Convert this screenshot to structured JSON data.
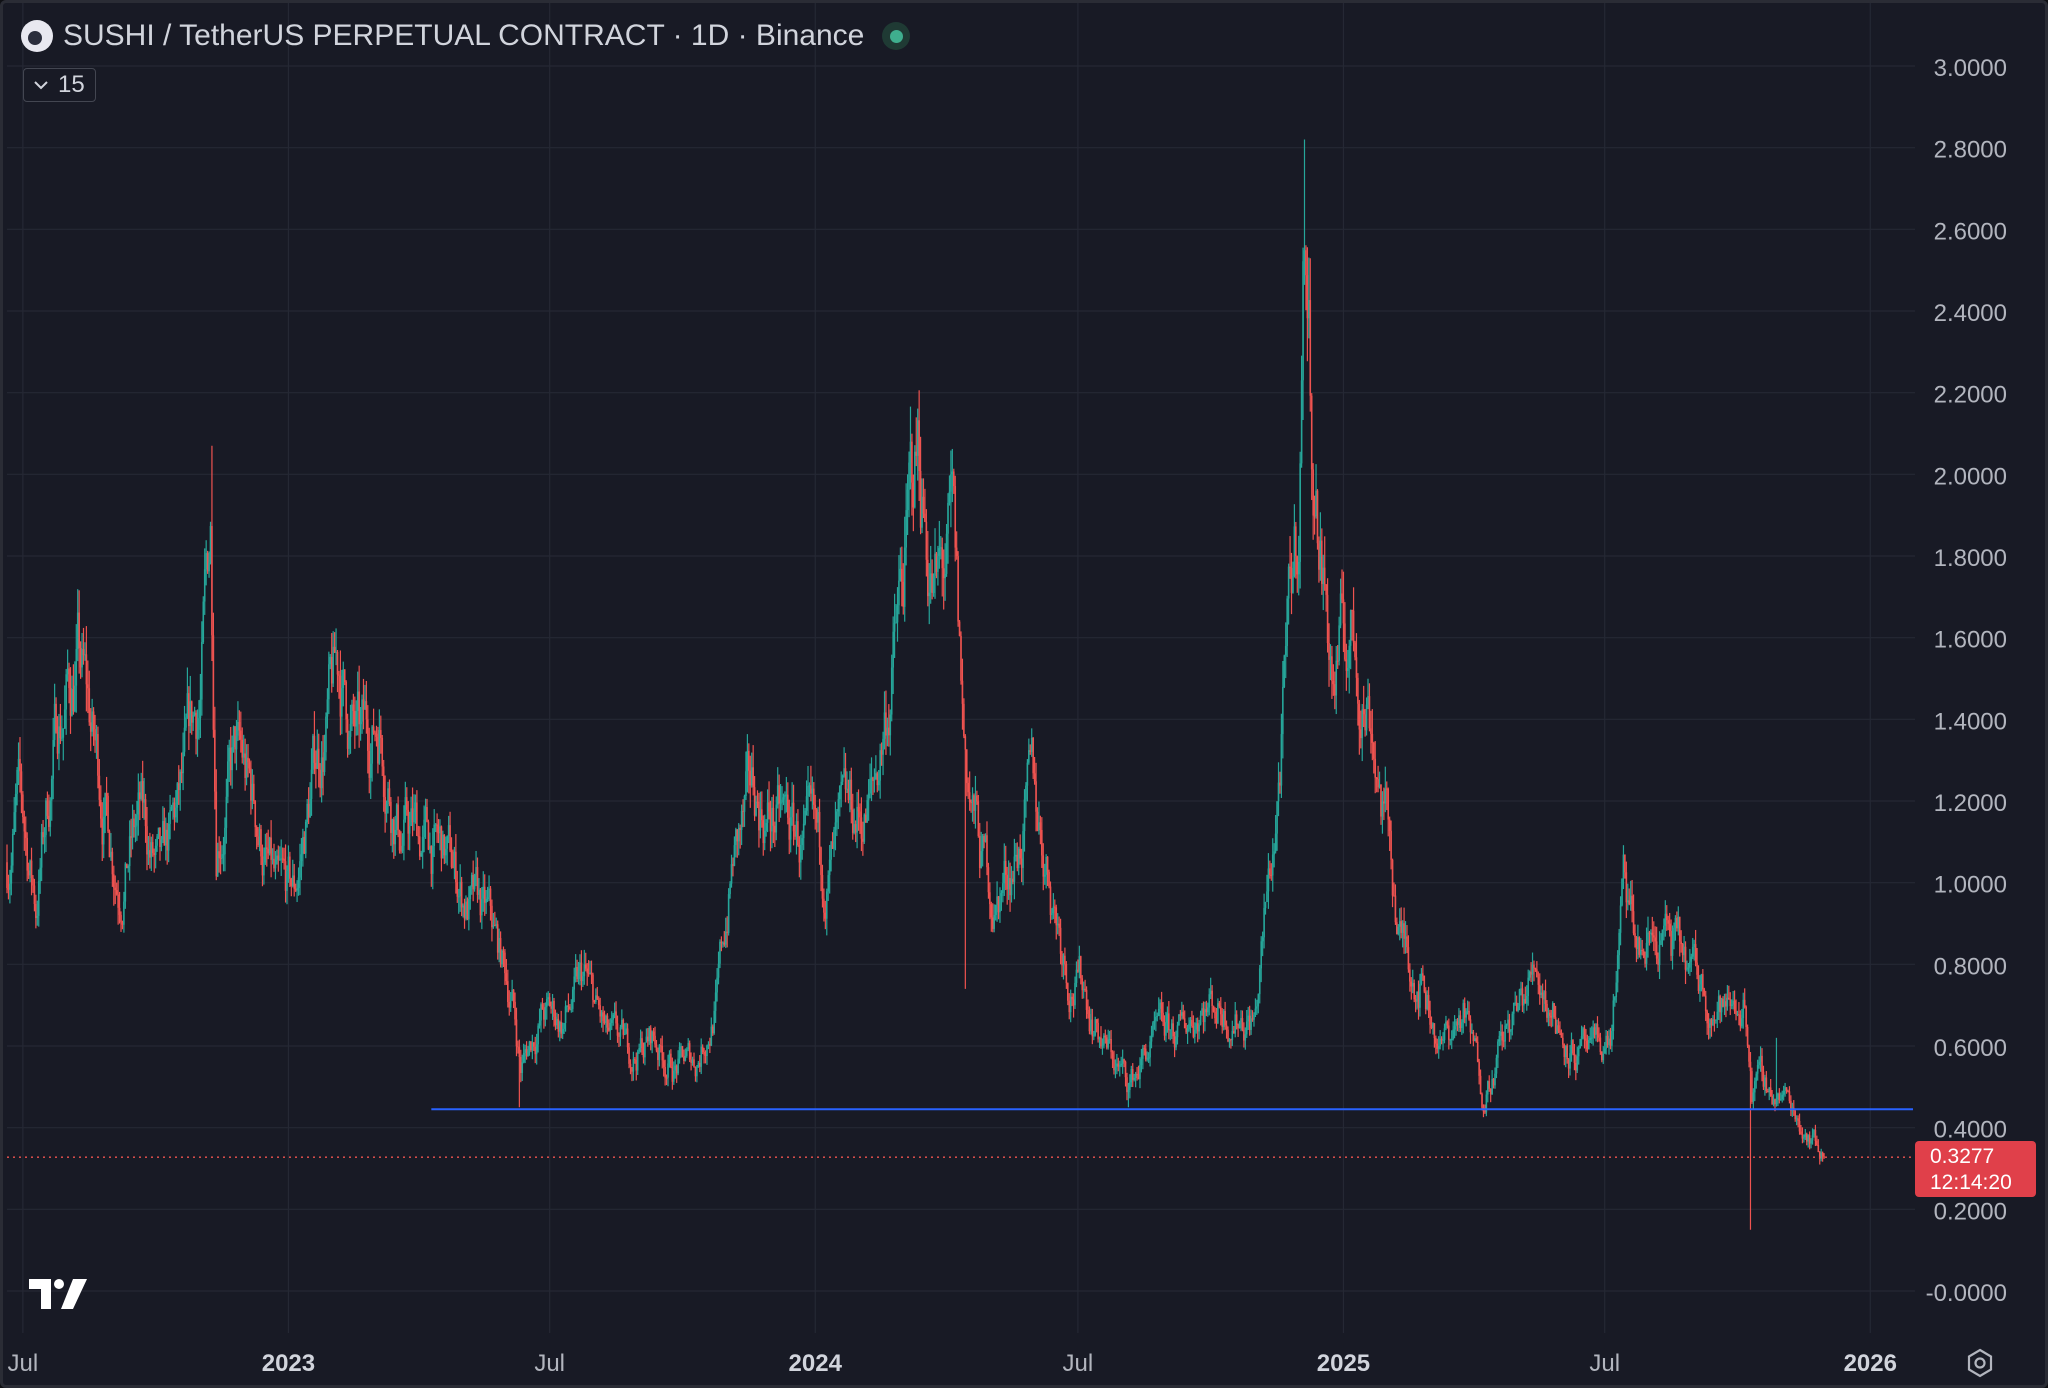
{
  "header": {
    "title": "SUSHI / TetherUS PERPETUAL CONTRACT · 1D · Binance"
  },
  "indicator_toggle": {
    "count": "15"
  },
  "price_badge": {
    "price": "0.3277",
    "countdown": "12:14:20"
  },
  "colors": {
    "background": "#181a25",
    "grid": "#252834",
    "up": "#26a69a",
    "down": "#ef5350",
    "support_line": "#2962ff",
    "last_price_line": "#ef5350",
    "axis_text": "#b2b5be"
  },
  "chart_data": {
    "type": "candlestick",
    "symbol": "SUSHI / TetherUS PERPETUAL CONTRACT",
    "interval": "1D",
    "exchange": "Binance",
    "ylim": [
      -0.0,
      3.0
    ],
    "y_ticks": [
      "3.0000",
      "2.8000",
      "2.6000",
      "2.4000",
      "2.2000",
      "2.0000",
      "1.8000",
      "1.6000",
      "1.4000",
      "1.2000",
      "1.0000",
      "0.8000",
      "0.6000",
      "0.4000",
      "0.2000",
      "-0.0000"
    ],
    "y_tick_values": [
      3.0,
      2.8,
      2.6,
      2.4,
      2.2,
      2.0,
      1.8,
      1.6,
      1.4,
      1.2,
      1.0,
      0.8,
      0.6,
      0.4,
      0.2,
      0.0
    ],
    "x_range": [
      "2022-06-20",
      "2026-02-01"
    ],
    "x_ticks": [
      {
        "label": "Jul",
        "date": "2022-07-01"
      },
      {
        "label": "2023",
        "date": "2023-01-01"
      },
      {
        "label": "Jul",
        "date": "2023-07-01"
      },
      {
        "label": "2024",
        "date": "2024-01-01"
      },
      {
        "label": "Jul",
        "date": "2024-07-01"
      },
      {
        "label": "2025",
        "date": "2025-01-01"
      },
      {
        "label": "Jul",
        "date": "2025-07-01"
      },
      {
        "label": "2026",
        "date": "2026-01-01"
      }
    ],
    "grid": true,
    "price_path": [
      [
        "2022-06-20",
        1.05
      ],
      [
        "2022-06-27",
        1.2
      ],
      [
        "2022-07-10",
        0.95
      ],
      [
        "2022-07-25",
        1.4
      ],
      [
        "2022-08-08",
        1.55
      ],
      [
        "2022-08-20",
        1.3
      ],
      [
        "2022-09-05",
        1.05
      ],
      [
        "2022-09-20",
        1.15
      ],
      [
        "2022-10-05",
        0.98
      ],
      [
        "2022-10-20",
        1.2
      ],
      [
        "2022-11-01",
        1.45
      ],
      [
        "2022-11-08",
        1.85
      ],
      [
        "2022-11-12",
        1.2
      ],
      [
        "2022-11-25",
        1.3
      ],
      [
        "2022-12-10",
        1.15
      ],
      [
        "2022-12-25",
        0.93
      ],
      [
        "2023-01-05",
        0.95
      ],
      [
        "2023-01-20",
        1.3
      ],
      [
        "2023-02-05",
        1.5
      ],
      [
        "2023-02-20",
        1.3
      ],
      [
        "2023-03-05",
        1.42
      ],
      [
        "2023-03-20",
        1.15
      ],
      [
        "2023-04-05",
        1.1
      ],
      [
        "2023-04-20",
        1.05
      ],
      [
        "2023-05-05",
        0.95
      ],
      [
        "2023-05-20",
        0.88
      ],
      [
        "2023-06-05",
        0.72
      ],
      [
        "2023-06-11",
        0.55
      ],
      [
        "2023-06-25",
        0.68
      ],
      [
        "2023-07-10",
        0.66
      ],
      [
        "2023-07-25",
        0.75
      ],
      [
        "2023-08-10",
        0.6
      ],
      [
        "2023-08-25",
        0.57
      ],
      [
        "2023-09-10",
        0.62
      ],
      [
        "2023-09-25",
        0.55
      ],
      [
        "2023-10-10",
        0.56
      ],
      [
        "2023-10-25",
        0.72
      ],
      [
        "2023-11-05",
        1.05
      ],
      [
        "2023-11-20",
        1.2
      ],
      [
        "2023-12-05",
        1.15
      ],
      [
        "2023-12-20",
        1.1
      ],
      [
        "2024-01-05",
        1.0
      ],
      [
        "2024-01-20",
        1.08
      ],
      [
        "2024-02-10",
        1.2
      ],
      [
        "2024-03-01",
        1.7
      ],
      [
        "2024-03-12",
        2.05
      ],
      [
        "2024-03-25",
        1.7
      ],
      [
        "2024-04-05",
        1.8
      ],
      [
        "2024-04-13",
        1.3
      ],
      [
        "2024-04-25",
        1.05
      ],
      [
        "2024-05-05",
        0.95
      ],
      [
        "2024-05-20",
        1.1
      ],
      [
        "2024-05-30",
        1.2
      ],
      [
        "2024-06-10",
        1.05
      ],
      [
        "2024-06-25",
        0.8
      ],
      [
        "2024-07-05",
        0.75
      ],
      [
        "2024-07-20",
        0.6
      ],
      [
        "2024-08-05",
        0.5
      ],
      [
        "2024-08-20",
        0.6
      ],
      [
        "2024-09-10",
        0.62
      ],
      [
        "2024-09-25",
        0.72
      ],
      [
        "2024-10-15",
        0.7
      ],
      [
        "2024-11-01",
        0.68
      ],
      [
        "2024-11-15",
        1.15
      ],
      [
        "2024-12-01",
        1.9
      ],
      [
        "2024-12-05",
        2.6
      ],
      [
        "2024-12-12",
        2.0
      ],
      [
        "2024-12-25",
        1.5
      ],
      [
        "2025-01-05",
        1.6
      ],
      [
        "2025-01-20",
        1.45
      ],
      [
        "2025-02-03",
        1.05
      ],
      [
        "2025-02-10",
        0.85
      ],
      [
        "2025-02-25",
        0.78
      ],
      [
        "2025-03-10",
        0.6
      ],
      [
        "2025-03-25",
        0.68
      ],
      [
        "2025-04-07",
        0.5
      ],
      [
        "2025-04-20",
        0.6
      ],
      [
        "2025-05-05",
        0.7
      ],
      [
        "2025-05-15",
        0.8
      ],
      [
        "2025-06-01",
        0.65
      ],
      [
        "2025-06-22",
        0.55
      ],
      [
        "2025-07-05",
        0.62
      ],
      [
        "2025-07-14",
        0.95
      ],
      [
        "2025-07-25",
        0.82
      ],
      [
        "2025-08-10",
        0.88
      ],
      [
        "2025-08-25",
        0.78
      ],
      [
        "2025-09-10",
        0.73
      ],
      [
        "2025-09-25",
        0.68
      ],
      [
        "2025-10-05",
        0.72
      ],
      [
        "2025-10-10",
        0.6
      ],
      [
        "2025-10-11",
        0.52
      ],
      [
        "2025-10-20",
        0.5
      ],
      [
        "2025-11-01",
        0.48
      ],
      [
        "2025-11-10",
        0.44
      ],
      [
        "2025-11-20",
        0.4
      ],
      [
        "2025-11-30",
        0.3277
      ]
    ],
    "annotations": [
      {
        "type": "horizontal_line",
        "price": 0.445,
        "from_date": "2023-04-10",
        "color": "#2962ff"
      },
      {
        "type": "last_price_line",
        "price": 0.3277,
        "color": "#ef5350",
        "style": "dotted"
      }
    ],
    "notable_wicks": [
      {
        "date": "2022-11-09",
        "high": 2.07
      },
      {
        "date": "2023-06-10",
        "low": 0.45
      },
      {
        "date": "2024-03-13",
        "high": 2.15
      },
      {
        "date": "2024-04-14",
        "low": 0.74
      },
      {
        "date": "2024-08-05",
        "low": 0.45
      },
      {
        "date": "2024-12-05",
        "high": 2.82
      },
      {
        "date": "2025-04-07",
        "low": 0.46
      },
      {
        "date": "2025-10-10",
        "low": 0.15
      },
      {
        "date": "2025-10-28",
        "high": 0.62
      }
    ]
  }
}
